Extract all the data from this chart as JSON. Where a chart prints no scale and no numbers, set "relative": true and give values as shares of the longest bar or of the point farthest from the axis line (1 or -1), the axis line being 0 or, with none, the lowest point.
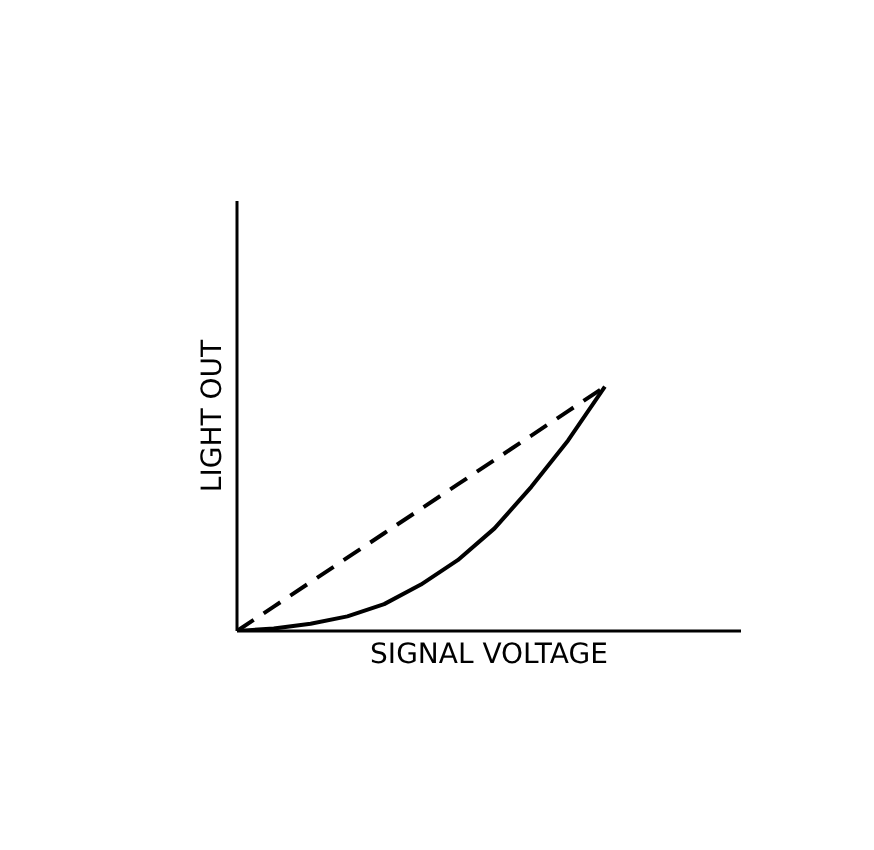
{
  "chart_data": {
    "type": "line",
    "relative": true,
    "xlabel": "SIGNAL VOLTAGE",
    "ylabel": "LIGHT OUT",
    "categories": [
      null,
      null,
      null,
      null,
      null,
      null,
      null,
      null,
      null,
      null,
      null
    ],
    "series": [
      {
        "color": "#000000",
        "line_style": "solid",
        "values": [
          0,
          0.01,
          0.03,
          0.06,
          0.11,
          0.19,
          0.29,
          0.42,
          0.59,
          0.78,
          1
        ]
      },
      {
        "color": "#000000",
        "line_style": "dashed",
        "values": [
          0,
          0.1,
          0.2,
          0.3,
          0.4,
          0.5,
          0.6,
          0.7,
          0.8,
          0.9,
          1
        ]
      }
    ]
  }
}
